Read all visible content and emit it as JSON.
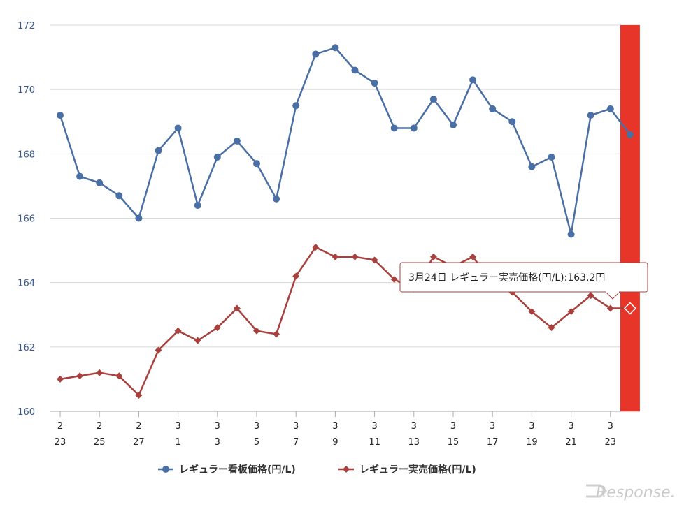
{
  "chart_data": {
    "type": "line",
    "ylim": [
      160,
      172
    ],
    "yticks": [
      160,
      162,
      164,
      166,
      168,
      170,
      172
    ],
    "xtick_labels": [
      [
        "2",
        "23"
      ],
      [
        "2",
        "25"
      ],
      [
        "2",
        "27"
      ],
      [
        "3",
        "1"
      ],
      [
        "3",
        "3"
      ],
      [
        "3",
        "5"
      ],
      [
        "3",
        "7"
      ],
      [
        "3",
        "9"
      ],
      [
        "3",
        "11"
      ],
      [
        "3",
        "13"
      ],
      [
        "3",
        "15"
      ],
      [
        "3",
        "17"
      ],
      [
        "3",
        "19"
      ],
      [
        "3",
        "21"
      ],
      [
        "3",
        "23"
      ]
    ],
    "x": [
      "2/23",
      "2/24",
      "2/25",
      "2/26",
      "2/27",
      "2/28",
      "3/1",
      "3/2",
      "3/3",
      "3/4",
      "3/5",
      "3/6",
      "3/7",
      "3/8",
      "3/9",
      "3/10",
      "3/11",
      "3/12",
      "3/13",
      "3/14",
      "3/15",
      "3/16",
      "3/17",
      "3/18",
      "3/19",
      "3/20",
      "3/21",
      "3/22",
      "3/23",
      "3/24"
    ],
    "series": [
      {
        "name": "レギュラー看板価格(円/L)",
        "color": "#4a6fa5",
        "marker": "circle",
        "values": [
          169.2,
          167.3,
          167.1,
          166.7,
          166.0,
          168.1,
          168.8,
          166.4,
          167.9,
          168.4,
          167.7,
          166.6,
          169.5,
          171.1,
          171.3,
          170.6,
          170.2,
          168.8,
          168.8,
          169.7,
          168.9,
          170.3,
          169.4,
          169.0,
          167.6,
          167.9,
          165.5,
          169.2,
          169.4,
          168.6
        ]
      },
      {
        "name": "レギュラー実売価格(円/L)",
        "color": "#a8403d",
        "marker": "diamond",
        "values": [
          161.0,
          161.1,
          161.2,
          161.1,
          160.5,
          161.9,
          162.5,
          162.2,
          162.6,
          163.2,
          162.5,
          162.4,
          164.2,
          165.1,
          164.8,
          164.8,
          164.7,
          164.1,
          163.8,
          164.8,
          164.5,
          164.8,
          164.0,
          163.7,
          163.1,
          162.6,
          163.1,
          163.6,
          163.2,
          163.2
        ]
      }
    ],
    "highlight_color": "#e8352a",
    "tooltip": "3月24日 レギュラー実売価格(円/L):163.2円",
    "legend_position": "bottom",
    "grid": true
  },
  "watermark": "Response."
}
